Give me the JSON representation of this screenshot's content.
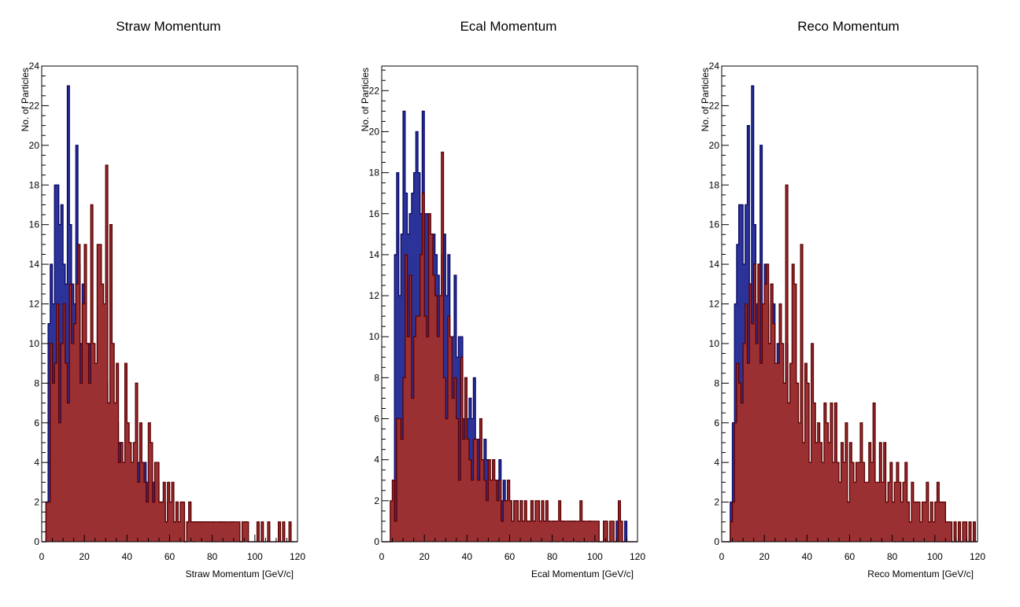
{
  "colors": {
    "blue_fill": "#2b3399",
    "blue_line": "#0a0a66",
    "red_fill": "#9b3033",
    "red_line": "#5c0000",
    "frame": "#000000"
  },
  "chart_data": [
    {
      "type": "histogram",
      "title": "Straw Momentum",
      "xlabel": "Straw Momentum [GeV/c]",
      "ylabel": "No. of Particles",
      "xlim": [
        0,
        120
      ],
      "ylim": [
        0,
        24
      ],
      "xticks": [
        0,
        20,
        40,
        60,
        80,
        100,
        120
      ],
      "yticks": [
        0,
        2,
        4,
        6,
        8,
        10,
        12,
        14,
        16,
        18,
        20,
        22,
        24
      ],
      "bin_width": 1,
      "bin_start": 0,
      "series": [
        {
          "values": [
            0,
            0,
            2,
            11,
            14,
            12,
            18,
            18,
            16,
            17,
            14,
            13,
            23,
            16,
            13,
            12,
            20,
            14,
            10,
            13,
            10,
            10,
            10,
            8,
            8,
            8,
            7,
            9,
            6,
            10,
            8,
            7,
            5,
            6,
            7,
            6,
            5,
            5,
            4,
            6,
            5,
            4,
            3,
            4,
            5,
            4,
            3,
            3,
            4,
            3,
            3,
            4,
            3,
            2,
            3,
            2,
            2,
            2,
            1,
            2,
            1,
            1,
            1,
            2,
            1,
            1,
            1,
            0,
            1,
            2,
            1,
            0,
            1,
            1,
            1,
            1,
            1,
            0,
            1,
            0,
            1,
            0,
            0,
            1,
            0,
            1,
            0,
            0,
            0,
            1,
            0,
            0,
            0,
            0,
            0,
            1,
            0,
            0,
            0,
            0,
            0,
            0,
            0,
            0,
            0,
            0,
            0,
            0,
            0,
            0,
            0,
            0,
            0,
            0,
            0,
            0,
            0,
            0,
            0,
            0
          ]
        },
        {
          "values": [
            0,
            0,
            2,
            2,
            10,
            8,
            9,
            12,
            6,
            10,
            12,
            9,
            7,
            13,
            10,
            11,
            13,
            15,
            8,
            12,
            15,
            10,
            8,
            17,
            10,
            9,
            15,
            15,
            13,
            12,
            19,
            7,
            16,
            10,
            7,
            9,
            4,
            5,
            4,
            9,
            6,
            5,
            4,
            5,
            8,
            3,
            6,
            4,
            3,
            2,
            6,
            5,
            2,
            4,
            4,
            2,
            2,
            3,
            1,
            3,
            2,
            3,
            1,
            2,
            1,
            2,
            2,
            0,
            1,
            2,
            1,
            1,
            1,
            1,
            1,
            1,
            1,
            1,
            1,
            1,
            1,
            1,
            1,
            1,
            1,
            1,
            1,
            1,
            1,
            1,
            1,
            1,
            1,
            0,
            1,
            1,
            1,
            0,
            0,
            0,
            0,
            1,
            0,
            1,
            0,
            0,
            1,
            0,
            0,
            0,
            0,
            1,
            0,
            1,
            0,
            0,
            1,
            0,
            0,
            0
          ]
        }
      ]
    },
    {
      "type": "histogram",
      "title": "Ecal Momentum",
      "xlabel": "Ecal Momentum [GeV/c]",
      "ylabel": "No. of Particles",
      "xlim": [
        0,
        120
      ],
      "ylim": [
        0,
        23.2
      ],
      "xticks": [
        0,
        20,
        40,
        60,
        80,
        100,
        120
      ],
      "yticks": [
        0,
        2,
        4,
        6,
        8,
        10,
        12,
        14,
        16,
        18,
        20,
        22
      ],
      "bin_width": 1,
      "bin_start": 0,
      "series": [
        {
          "values": [
            0,
            0,
            0,
            0,
            0,
            3,
            14,
            18,
            12,
            15,
            21,
            17,
            15,
            16,
            17,
            18,
            20,
            18,
            16,
            21,
            16,
            16,
            14,
            12,
            15,
            14,
            13,
            12,
            14,
            15,
            12,
            14,
            10,
            10,
            13,
            9,
            10,
            10,
            6,
            8,
            6,
            7,
            6,
            8,
            4,
            5,
            4,
            3,
            5,
            4,
            3,
            3,
            4,
            3,
            3,
            4,
            2,
            3,
            2,
            3,
            2,
            1,
            2,
            2,
            1,
            2,
            1,
            1,
            1,
            1,
            2,
            1,
            1,
            1,
            1,
            1,
            1,
            1,
            1,
            0,
            1,
            1,
            0,
            1,
            1,
            1,
            0,
            1,
            0,
            1,
            1,
            0,
            0,
            0,
            1,
            0,
            0,
            1,
            0,
            0,
            0,
            0,
            0,
            0,
            1,
            0,
            0,
            0,
            0,
            0,
            1,
            0,
            0,
            0,
            1,
            0,
            0,
            0,
            0,
            0
          ]
        },
        {
          "values": [
            0,
            0,
            0,
            0,
            2,
            3,
            1,
            6,
            6,
            5,
            8,
            14,
            10,
            13,
            7,
            10,
            11,
            11,
            14,
            17,
            11,
            10,
            16,
            15,
            13,
            12,
            10,
            12,
            19,
            8,
            6,
            11,
            10,
            7,
            8,
            6,
            3,
            9,
            5,
            8,
            5,
            4,
            3,
            5,
            5,
            3,
            6,
            4,
            3,
            2,
            4,
            3,
            4,
            3,
            2,
            3,
            1,
            2,
            2,
            3,
            2,
            1,
            2,
            2,
            1,
            2,
            1,
            2,
            1,
            1,
            2,
            1,
            2,
            2,
            1,
            2,
            1,
            2,
            1,
            1,
            1,
            1,
            1,
            2,
            1,
            1,
            1,
            1,
            1,
            1,
            1,
            1,
            1,
            2,
            1,
            1,
            1,
            1,
            1,
            1,
            1,
            1,
            0,
            0,
            1,
            1,
            0,
            1,
            1,
            0,
            0,
            2,
            1,
            0,
            0,
            0,
            0,
            0,
            0,
            0
          ]
        }
      ]
    },
    {
      "type": "histogram",
      "title": "Reco Momentum",
      "xlabel": "Reco Momentum [GeV/c]",
      "ylabel": "No. of Particles",
      "xlim": [
        0,
        120
      ],
      "ylim": [
        0,
        24
      ],
      "xticks": [
        0,
        20,
        40,
        60,
        80,
        100,
        120
      ],
      "yticks": [
        0,
        2,
        4,
        6,
        8,
        10,
        12,
        14,
        16,
        18,
        20,
        22,
        24
      ],
      "bin_width": 1,
      "bin_start": 0,
      "series": [
        {
          "values": [
            0,
            0,
            0,
            0,
            2,
            6,
            12,
            15,
            17,
            17,
            14,
            17,
            21,
            13,
            23,
            16,
            12,
            14,
            20,
            11,
            14,
            12,
            10,
            13,
            12,
            9,
            10,
            10,
            8,
            8,
            10,
            7,
            7,
            8,
            7,
            6,
            5,
            6,
            4,
            5,
            4,
            4,
            3,
            4,
            3,
            3,
            4,
            3,
            2,
            3,
            2,
            3,
            3,
            2,
            2,
            3,
            2,
            2,
            2,
            2,
            2,
            1,
            2,
            1,
            1,
            2,
            1,
            1,
            1,
            1,
            2,
            1,
            1,
            1,
            1,
            0,
            1,
            1,
            1,
            1,
            1,
            0,
            1,
            0,
            1,
            0,
            1,
            0,
            0,
            1,
            0,
            1,
            0,
            0,
            1,
            0,
            0,
            0,
            1,
            0,
            0,
            0,
            0,
            0,
            0,
            0,
            0,
            0,
            0,
            0,
            0,
            0,
            0,
            0,
            0,
            0,
            0,
            0,
            0,
            0
          ]
        },
        {
          "values": [
            0,
            0,
            0,
            0,
            1,
            2,
            6,
            9,
            8,
            7,
            10,
            12,
            9,
            13,
            11,
            14,
            10,
            14,
            9,
            12,
            13,
            14,
            10,
            13,
            11,
            9,
            9,
            12,
            10,
            8,
            18,
            7,
            9,
            14,
            13,
            8,
            6,
            15,
            5,
            9,
            8,
            4,
            10,
            7,
            5,
            6,
            5,
            4,
            7,
            6,
            5,
            7,
            4,
            7,
            4,
            3,
            5,
            4,
            6,
            2,
            5,
            4,
            3,
            4,
            4,
            6,
            4,
            3,
            3,
            5,
            4,
            7,
            3,
            3,
            5,
            3,
            5,
            2,
            3,
            4,
            2,
            3,
            4,
            3,
            2,
            3,
            4,
            2,
            1,
            3,
            2,
            2,
            2,
            1,
            2,
            2,
            3,
            1,
            2,
            1,
            2,
            3,
            2,
            2,
            2,
            1,
            1,
            1,
            0,
            1,
            0,
            1,
            0,
            1,
            1,
            0,
            1,
            0,
            1,
            0
          ]
        }
      ]
    }
  ]
}
